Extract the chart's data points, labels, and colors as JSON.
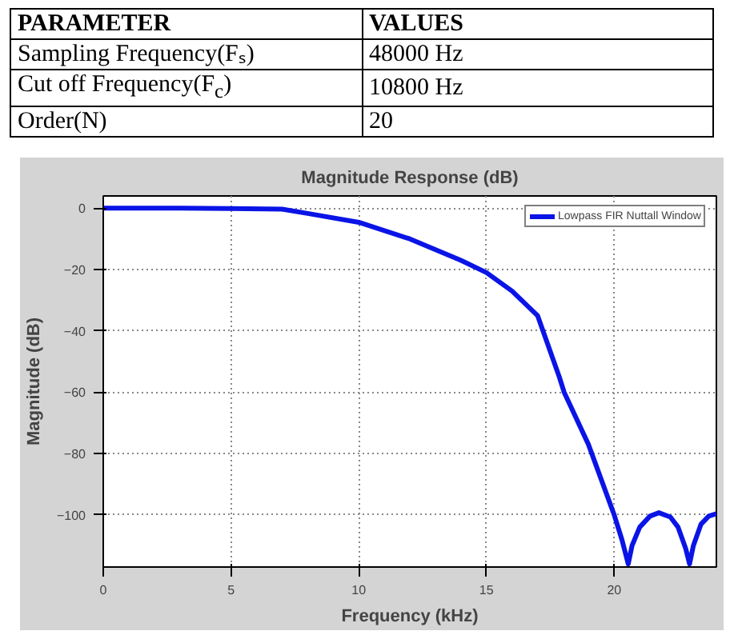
{
  "chart_data": {
    "type": "line",
    "title": "Magnitude Response (dB)",
    "xlabel": "Frequency (kHz)",
    "ylabel": "Magnitude (dB)",
    "annotations": [
      "PARAMETER",
      "VALUES",
      "Sampling Frequency(Fₛ)",
      "48000 Hz",
      "Cut off Frequency(F$_{c}$)",
      "10800 Hz",
      "Order(N)",
      "20"
    ],
    "xlim": [
      0,
      24
    ],
    "ylim": [
      -117,
      4
    ],
    "xticks": [
      0,
      5,
      10,
      15,
      20
    ],
    "yticks": [
      -100,
      -80,
      -60,
      -40,
      -20,
      0
    ],
    "grid": true,
    "legend": "top right",
    "line_style": "solid",
    "series": [
      {
        "name": "Lowpass FIR Nuttall Window",
        "color": "#0a14e6",
        "x": [
          0,
          3,
          5,
          7,
          8,
          10,
          12,
          14,
          15,
          16,
          17,
          17.85,
          18.04,
          18.99,
          20,
          20.3,
          20.55,
          20.7,
          21,
          21.4,
          21.75,
          22.2,
          22.5,
          22.8,
          22.95,
          23.1,
          23.4,
          23.7,
          24
        ],
        "values": [
          0,
          0,
          -0.1,
          -0.3,
          -1.7,
          -4.6,
          -10,
          -17,
          -21,
          -27,
          -35,
          -55,
          -60,
          -77,
          -100,
          -108,
          -116,
          -110,
          -104,
          -100.4,
          -99.3,
          -100.7,
          -104,
          -111,
          -116,
          -110,
          -103,
          -100.4,
          -99.6
        ]
      }
    ]
  }
}
